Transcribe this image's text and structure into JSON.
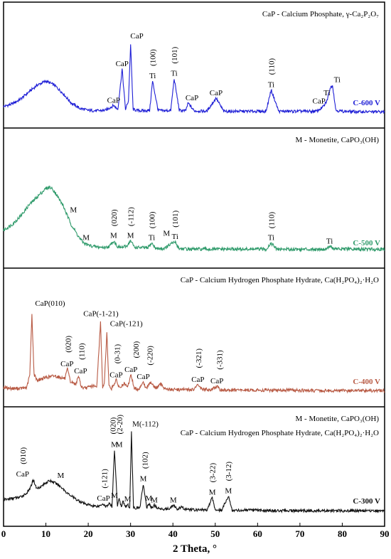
{
  "chart_data": {
    "type": "line",
    "xlabel": "2 Theta, °",
    "xlim": [
      0,
      90
    ],
    "x_ticks": [
      "0",
      "10",
      "20",
      "30",
      "40",
      "50",
      "60",
      "70",
      "80",
      "90"
    ],
    "grid": false,
    "legend": "none",
    "panels": [
      {
        "series_name": "C-600 V",
        "color": "#1f1fd6",
        "legend_lines": [
          "CaP - Calcium Phosphate, γ-Ca₂P₂O₇"
        ],
        "data": {
          "x": [
            0,
            2,
            4,
            6,
            8,
            10,
            12,
            14,
            16,
            18,
            20,
            22,
            24,
            26,
            27,
            28,
            28.8,
            29.5,
            30,
            30.6,
            31.5,
            33,
            34.5,
            35.2,
            36.5,
            38,
            39.5,
            40.3,
            41.5,
            43,
            43.6,
            45,
            48,
            50.2,
            52,
            55,
            58,
            60,
            62,
            63.2,
            65,
            68,
            70,
            72,
            74,
            75.6,
            76.4,
            77.1,
            77.7,
            78.5,
            80,
            84,
            88,
            90
          ],
          "y": [
            0.18,
            0.23,
            0.33,
            0.48,
            0.62,
            0.7,
            0.62,
            0.45,
            0.25,
            0.14,
            0.1,
            0.09,
            0.1,
            0.2,
            0.12,
            0.95,
            0.12,
            0.3,
            1.45,
            0.12,
            0.1,
            0.09,
            0.1,
            0.7,
            0.1,
            0.09,
            0.1,
            0.75,
            0.1,
            0.09,
            0.25,
            0.09,
            0.08,
            0.35,
            0.08,
            0.08,
            0.08,
            0.08,
            0.08,
            0.52,
            0.08,
            0.08,
            0.08,
            0.08,
            0.08,
            0.18,
            0.3,
            0.55,
            0.62,
            0.1,
            0.08,
            0.07,
            0.07,
            0.07
          ]
        },
        "peak_labels": [
          {
            "x": 26,
            "y": 0.2,
            "text": "CaP",
            "rot": false
          },
          {
            "x": 28,
            "y": 0.95,
            "text": "CaP",
            "rot": false
          },
          {
            "x": 31.5,
            "y": 1.52,
            "text": "CaP",
            "rot": false
          },
          {
            "x": 35.2,
            "y": 0.7,
            "text": "Ti",
            "rot": false
          },
          {
            "x": 35.2,
            "y": 0.95,
            "text": "(100)",
            "rot": true
          },
          {
            "x": 40.3,
            "y": 0.75,
            "text": "Ti",
            "rot": false
          },
          {
            "x": 40.3,
            "y": 1.0,
            "text": "(101)",
            "rot": true
          },
          {
            "x": 44.5,
            "y": 0.25,
            "text": "CaP",
            "rot": false
          },
          {
            "x": 50.2,
            "y": 0.35,
            "text": "CaP",
            "rot": false
          },
          {
            "x": 63.2,
            "y": 0.52,
            "text": "Ti",
            "rot": false
          },
          {
            "x": 63.2,
            "y": 0.77,
            "text": "(110)",
            "rot": true
          },
          {
            "x": 74.5,
            "y": 0.18,
            "text": "CaP",
            "rot": false
          },
          {
            "x": 76.4,
            "y": 0.35,
            "text": "Ti",
            "rot": false
          },
          {
            "x": 78.8,
            "y": 0.62,
            "text": "Ti",
            "rot": false
          }
        ]
      },
      {
        "series_name": "C-500 V",
        "color": "#2e9a6a",
        "legend_lines": [
          "M - Monetite, CaPO₃(OH)"
        ],
        "data": {
          "x": [
            0,
            2,
            4,
            6,
            8,
            10,
            11,
            12,
            14,
            15,
            16,
            18,
            19,
            20,
            22,
            24,
            25,
            26,
            27,
            28,
            29,
            30,
            31,
            32,
            34,
            35,
            36,
            38,
            39.5,
            40.5,
            41.5,
            44,
            48,
            52,
            56,
            60,
            62,
            63.2,
            64.5,
            68,
            72,
            74,
            76,
            77,
            78,
            80,
            84,
            88,
            90
          ],
          "y": [
            0.45,
            0.55,
            0.7,
            0.9,
            1.05,
            1.2,
            1.22,
            1.15,
            0.9,
            0.72,
            0.55,
            0.3,
            0.22,
            0.18,
            0.15,
            0.14,
            0.16,
            0.26,
            0.15,
            0.14,
            0.16,
            0.26,
            0.14,
            0.14,
            0.13,
            0.22,
            0.12,
            0.12,
            0.2,
            0.24,
            0.12,
            0.11,
            0.11,
            0.11,
            0.11,
            0.11,
            0.11,
            0.22,
            0.11,
            0.11,
            0.11,
            0.11,
            0.11,
            0.16,
            0.12,
            0.11,
            0.11,
            0.11,
            0.11
          ]
        },
        "peak_labels": [
          {
            "x": 16.5,
            "y": 0.72,
            "text": "M",
            "rot": false
          },
          {
            "x": 19.5,
            "y": 0.22,
            "text": "M",
            "rot": false
          },
          {
            "x": 26,
            "y": 0.26,
            "text": "M",
            "rot": false
          },
          {
            "x": 26,
            "y": 0.47,
            "text": "(020)",
            "rot": true
          },
          {
            "x": 30,
            "y": 0.26,
            "text": "M",
            "rot": false
          },
          {
            "x": 30,
            "y": 0.47,
            "text": "(-112)",
            "rot": true
          },
          {
            "x": 35,
            "y": 0.22,
            "text": "Ti",
            "rot": false
          },
          {
            "x": 35,
            "y": 0.43,
            "text": "(100)",
            "rot": true
          },
          {
            "x": 40.5,
            "y": 0.24,
            "text": "Ti",
            "rot": false
          },
          {
            "x": 40.5,
            "y": 0.45,
            "text": "(101)",
            "rot": true
          },
          {
            "x": 38.5,
            "y": 0.3,
            "text": "M",
            "rot": false
          },
          {
            "x": 63.2,
            "y": 0.22,
            "text": "Ti",
            "rot": false
          },
          {
            "x": 63.2,
            "y": 0.43,
            "text": "(110)",
            "rot": true
          },
          {
            "x": 77,
            "y": 0.16,
            "text": "Ti",
            "rot": false
          }
        ]
      },
      {
        "series_name": "C-400 V",
        "color": "#b85a44",
        "legend_lines": [
          "CaP - Calcium Hydrogen Phosphate Hydrate, Ca(H₂PO₄)₂·H₂O"
        ],
        "data": {
          "x": [
            0,
            2,
            4,
            5.5,
            6.2,
            6.7,
            7.2,
            8,
            10,
            12,
            13.5,
            14.5,
            15.1,
            15.8,
            17,
            17.8,
            18.3,
            19,
            20,
            21,
            22,
            22.9,
            23.4,
            23.8,
            24.4,
            24.9,
            25.5,
            26.6,
            27.4,
            28.5,
            29.3,
            30.1,
            30.9,
            32,
            32.9,
            33.7,
            34.8,
            36,
            37.1,
            38.3,
            40,
            42,
            44,
            45,
            45.9,
            47,
            49,
            50.4,
            51,
            52,
            56,
            60,
            64,
            68,
            72,
            76,
            80,
            84,
            88,
            90
          ],
          "y": [
            0.12,
            0.1,
            0.1,
            0.12,
            0.35,
            1.45,
            0.35,
            0.25,
            0.3,
            0.33,
            0.3,
            0.28,
            0.45,
            0.22,
            0.18,
            0.32,
            0.14,
            0.1,
            0.12,
            0.15,
            0.12,
            1.3,
            0.12,
            0.18,
            1.12,
            0.14,
            0.1,
            0.25,
            0.11,
            0.18,
            0.12,
            0.35,
            0.1,
            0.09,
            0.22,
            0.1,
            0.22,
            0.1,
            0.18,
            0.09,
            0.08,
            0.08,
            0.08,
            0.08,
            0.17,
            0.08,
            0.08,
            0.14,
            0.08,
            0.07,
            0.07,
            0.07,
            0.07,
            0.07,
            0.06,
            0.06,
            0.06,
            0.06,
            0.06,
            0.06
          ]
        },
        "peak_labels": [
          {
            "x": 11,
            "y": 1.55,
            "text": "CaP(010)",
            "rot": false
          },
          {
            "x": 15,
            "y": 0.45,
            "text": "CaP",
            "rot": false
          },
          {
            "x": 15.2,
            "y": 0.7,
            "text": "(020)",
            "rot": true
          },
          {
            "x": 18.2,
            "y": 0.32,
            "text": "CaP",
            "rot": false
          },
          {
            "x": 18.4,
            "y": 0.57,
            "text": "(110)",
            "rot": true
          },
          {
            "x": 23,
            "y": 1.36,
            "text": "CaP(-1-21)",
            "rot": false
          },
          {
            "x": 29,
            "y": 1.18,
            "text": "CaP(-121)",
            "rot": false
          },
          {
            "x": 26.6,
            "y": 0.25,
            "text": "CaP",
            "rot": false
          },
          {
            "x": 26.8,
            "y": 0.5,
            "text": "(0-31)",
            "rot": true
          },
          {
            "x": 30.1,
            "y": 0.35,
            "text": "CaP",
            "rot": false
          },
          {
            "x": 31.2,
            "y": 0.6,
            "text": "(200)",
            "rot": true
          },
          {
            "x": 33,
            "y": 0.22,
            "text": "CaP",
            "rot": false
          },
          {
            "x": 34.5,
            "y": 0.47,
            "text": "(-220)",
            "rot": true
          },
          {
            "x": 45.9,
            "y": 0.17,
            "text": "CaP",
            "rot": false
          },
          {
            "x": 46,
            "y": 0.42,
            "text": "(-321)",
            "rot": true
          },
          {
            "x": 50.4,
            "y": 0.14,
            "text": "CaP",
            "rot": false
          },
          {
            "x": 51,
            "y": 0.39,
            "text": "(-331)",
            "rot": true
          }
        ]
      },
      {
        "series_name": "C-300 V",
        "color": "#111111",
        "legend_lines": [
          "M - Monetite, CaPO₃(OH)",
          "CaP - Calcium Hydrogen Phosphate Hydrate, Ca(H₂PO₄)₂·H₂O"
        ],
        "data": {
          "x": [
            0,
            2,
            4,
            5.5,
            6.3,
            7,
            7.8,
            9,
            10,
            11,
            12,
            13,
            14,
            15,
            17,
            19,
            21,
            22.5,
            23.4,
            24.2,
            25,
            25.6,
            26.2,
            26.9,
            27.3,
            27.8,
            28.2,
            28.8,
            29.3,
            29.8,
            30.2,
            30.7,
            31.4,
            32.2,
            33,
            33.8,
            34.3,
            35,
            35.6,
            36.4,
            37.5,
            39,
            40.1,
            41,
            42,
            43,
            45,
            48,
            49.3,
            50,
            51.5,
            53.1,
            54,
            56,
            60,
            64,
            68,
            72,
            76,
            80,
            84,
            88,
            90
          ],
          "y": [
            0.3,
            0.33,
            0.36,
            0.45,
            0.55,
            0.75,
            0.55,
            0.6,
            0.68,
            0.72,
            0.68,
            0.62,
            0.55,
            0.45,
            0.32,
            0.22,
            0.17,
            0.16,
            0.22,
            0.15,
            0.22,
            0.14,
            1.4,
            0.14,
            0.35,
            0.14,
            0.28,
            0.13,
            0.2,
            0.13,
            1.8,
            0.13,
            0.12,
            0.13,
            0.65,
            0.12,
            0.22,
            0.12,
            0.18,
            0.11,
            0.1,
            0.1,
            0.18,
            0.09,
            0.14,
            0.09,
            0.08,
            0.08,
            0.35,
            0.08,
            0.07,
            0.38,
            0.07,
            0.07,
            0.07,
            0.06,
            0.06,
            0.06,
            0.06,
            0.06,
            0.06,
            0.06,
            0.06
          ]
        },
        "peak_labels": [
          {
            "x": 4.5,
            "y": 0.75,
            "text": "CaP",
            "rot": false
          },
          {
            "x": 4.5,
            "y": 1.02,
            "text": "(010)",
            "rot": true
          },
          {
            "x": 13.5,
            "y": 0.72,
            "text": "M",
            "rot": false
          },
          {
            "x": 23.6,
            "y": 0.22,
            "text": "CaP",
            "rot": false
          },
          {
            "x": 23.8,
            "y": 0.49,
            "text": "(-121)",
            "rot": true
          },
          {
            "x": 26.2,
            "y": 0.28,
            "text": "M",
            "rot": false
          },
          {
            "x": 26.2,
            "y": 1.4,
            "text": "M",
            "rot": false
          },
          {
            "x": 25.8,
            "y": 1.68,
            "text": "(020)",
            "rot": true
          },
          {
            "x": 27.3,
            "y": 1.4,
            "text": "M",
            "rot": false
          },
          {
            "x": 27.4,
            "y": 1.68,
            "text": "(2-20)",
            "rot": true
          },
          {
            "x": 29.3,
            "y": 0.2,
            "text": "M",
            "rot": false
          },
          {
            "x": 33.5,
            "y": 1.85,
            "text": "M(-112)",
            "rot": false
          },
          {
            "x": 33,
            "y": 0.65,
            "text": "M",
            "rot": false
          },
          {
            "x": 33.3,
            "y": 0.92,
            "text": "(102)",
            "rot": true
          },
          {
            "x": 34.3,
            "y": 0.22,
            "text": "M",
            "rot": false
          },
          {
            "x": 35.6,
            "y": 0.18,
            "text": "M",
            "rot": false
          },
          {
            "x": 40.1,
            "y": 0.18,
            "text": "M",
            "rot": false
          },
          {
            "x": 49.3,
            "y": 0.35,
            "text": "M",
            "rot": false
          },
          {
            "x": 49.3,
            "y": 0.62,
            "text": "(3-22)",
            "rot": true
          },
          {
            "x": 53.1,
            "y": 0.38,
            "text": "M",
            "rot": false
          },
          {
            "x": 53.1,
            "y": 0.65,
            "text": "(3-12)",
            "rot": true
          }
        ]
      }
    ]
  }
}
